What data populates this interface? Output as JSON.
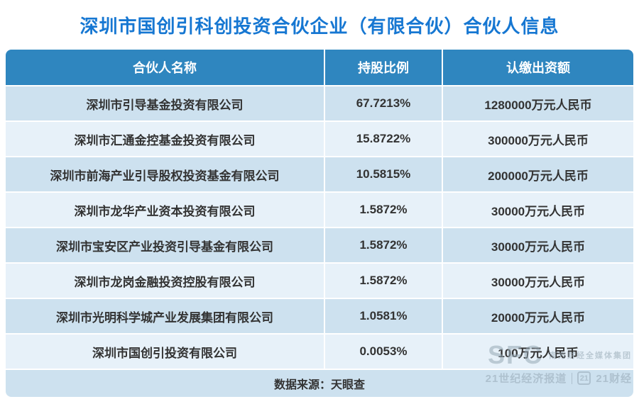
{
  "title": "深圳市国创引科创投资合伙企业（有限合伙）合伙人信息",
  "colors": {
    "title_blue": "#1677d2",
    "header_bg": "#2f86bf",
    "row_dark": "#cde1ef",
    "row_light": "#e7f1f9"
  },
  "table": {
    "headers": [
      "合伙人名称",
      "持股比例",
      "认缴出资额"
    ],
    "rows": [
      [
        "深圳市引导基金投资有限公司",
        "67.7213%",
        "1280000万元人民币"
      ],
      [
        "深圳市汇通金控基金投资有限公司",
        "15.8722%",
        "300000万元人民币"
      ],
      [
        "深圳市前海产业引导股权投资基金有限公司",
        "10.5815%",
        "200000万元人民币"
      ],
      [
        "深圳市龙华产业资本投资有限公司",
        "1.5872%",
        "30000万元人民币"
      ],
      [
        "深圳市宝安区产业投资引导基金有限公司",
        "1.5872%",
        "30000万元人民币"
      ],
      [
        "深圳市龙岗金融投资控股有限公司",
        "1.5872%",
        "30000万元人民币"
      ],
      [
        "深圳市光明科学城产业发展集团有限公司",
        "1.0581%",
        "20000万元人民币"
      ],
      [
        "深圳市国创引投资有限公司",
        "0.0053%",
        "100万元人民币"
      ]
    ]
  },
  "footer": {
    "source": "数据来源：天眼查"
  },
  "watermark": {
    "sfc": "SFC",
    "group_cn": "南方财经全媒体集团",
    "paper": "21世纪经济报道",
    "logo": "21",
    "brand": "21财经"
  },
  "chart_data": {
    "type": "table",
    "title": "深圳市国创引科创投资合伙企业（有限合伙）合伙人信息",
    "columns": [
      "合伙人名称",
      "持股比例",
      "认缴出资额"
    ],
    "rows": [
      [
        "深圳市引导基金投资有限公司",
        "67.7213%",
        "1280000万元人民币"
      ],
      [
        "深圳市汇通金控基金投资有限公司",
        "15.8722%",
        "300000万元人民币"
      ],
      [
        "深圳市前海产业引导股权投资基金有限公司",
        "10.5815%",
        "200000万元人民币"
      ],
      [
        "深圳市龙华产业资本投资有限公司",
        "1.5872%",
        "30000万元人民币"
      ],
      [
        "深圳市宝安区产业投资引导基金有限公司",
        "1.5872%",
        "30000万元人民币"
      ],
      [
        "深圳市龙岗金融投资控股有限公司",
        "1.5872%",
        "30000万元人民币"
      ],
      [
        "深圳市光明科学城产业发展集团有限公司",
        "1.0581%",
        "20000万元人民币"
      ],
      [
        "深圳市国创引投资有限公司",
        "0.0053%",
        "100万元人民币"
      ]
    ],
    "source": "数据来源：天眼查"
  }
}
